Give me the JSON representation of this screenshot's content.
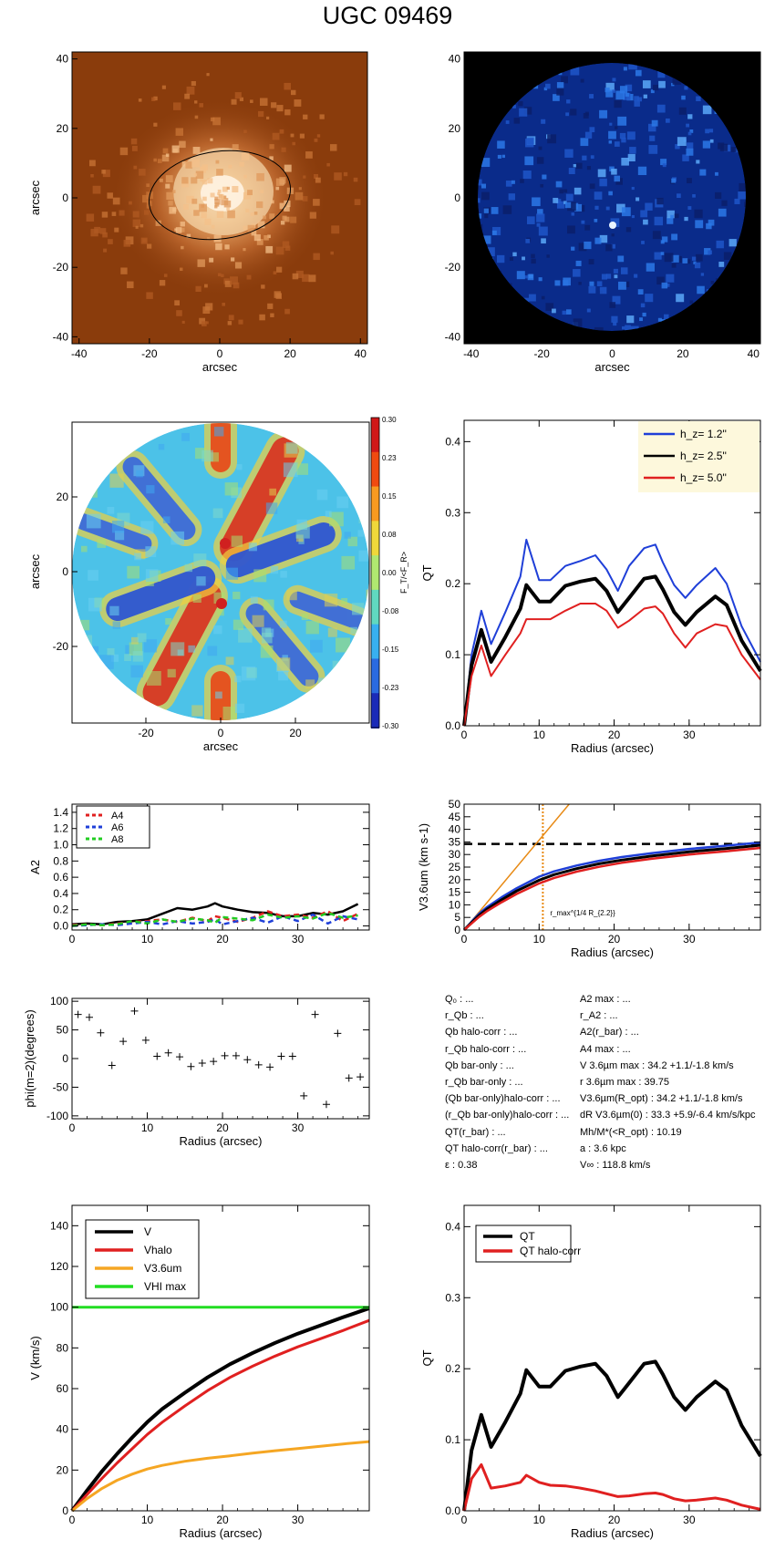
{
  "page": {
    "title": "UGC 09469"
  },
  "chart_data": [
    {
      "id": "image-3p6um",
      "type": "heatmap",
      "colormap": "orange",
      "xlabel": "arcsec",
      "ylabel": "arcsec",
      "xlim": [
        -42,
        42
      ],
      "ylim": [
        -42,
        42
      ],
      "xticks": [
        "-40",
        "-20",
        "0",
        "20",
        "40"
      ],
      "yticks": [
        "-40",
        "-20",
        "0",
        "20",
        "40"
      ],
      "ellipse": {
        "cx": 0,
        "cy": 0,
        "a": 20,
        "b": 12,
        "pa_deg": -10
      }
    },
    {
      "id": "image-residual",
      "type": "heatmap",
      "colormap": "blue",
      "xlabel": "arcsec",
      "ylabel": "",
      "xlim": [
        -42,
        42
      ],
      "ylim": [
        -42,
        42
      ],
      "xticks": [
        "-40",
        "-20",
        "0",
        "20",
        "40"
      ],
      "yticks": [
        "-40",
        "-20",
        "0",
        "20",
        "40"
      ]
    },
    {
      "id": "force-map",
      "type": "heatmap",
      "xlabel": "arcsec",
      "ylabel": "arcsec",
      "xticks": [
        "-20",
        "0",
        "20"
      ],
      "yticks": [
        "20",
        "0",
        "-20"
      ],
      "colorbar": {
        "label": "F_T/<F_R>",
        "ticks": [
          "0.30",
          "0.23",
          "0.15",
          "0.08",
          "0.00",
          "-0.08",
          "-0.15",
          "-0.23",
          "-0.30"
        ]
      }
    },
    {
      "id": "qt-profile",
      "type": "line",
      "xlabel": "Radius (arcsec)",
      "ylabel": "QT",
      "xlim": [
        0,
        39.5
      ],
      "ylim": [
        0,
        0.43
      ],
      "xticks": [
        "0",
        "10",
        "20",
        "30"
      ],
      "yticks": [
        "0.0",
        "0.1",
        "0.2",
        "0.3",
        "0.4"
      ],
      "legend": {
        "placement": "top-right",
        "items": [
          {
            "label": "h_z= 1.2''",
            "color": "#1f3fd8"
          },
          {
            "label": "h_z= 2.5''",
            "color": "#000000"
          },
          {
            "label": "h_z= 5.0''",
            "color": "#e02020"
          }
        ]
      },
      "x": [
        0,
        1,
        2.3,
        3.6,
        5.5,
        7.5,
        8.3,
        10,
        11.5,
        13.5,
        15.5,
        17.5,
        19,
        20.5,
        22,
        24,
        25.5,
        26.5,
        28,
        29.5,
        31,
        33.5,
        35,
        37,
        39.5
      ],
      "series": [
        {
          "name": "h_z= 1.2''",
          "color": "#1f3fd8",
          "values": [
            0,
            0.1,
            0.162,
            0.115,
            0.16,
            0.21,
            0.262,
            0.205,
            0.205,
            0.225,
            0.232,
            0.24,
            0.22,
            0.19,
            0.225,
            0.25,
            0.255,
            0.23,
            0.198,
            0.18,
            0.198,
            0.222,
            0.2,
            0.14,
            0.09
          ]
        },
        {
          "name": "h_z= 2.5''",
          "color": "#000000",
          "values": [
            0,
            0.085,
            0.135,
            0.09,
            0.125,
            0.165,
            0.198,
            0.175,
            0.175,
            0.197,
            0.203,
            0.207,
            0.19,
            0.16,
            0.18,
            0.207,
            0.21,
            0.192,
            0.16,
            0.142,
            0.16,
            0.182,
            0.17,
            0.12,
            0.077
          ]
        },
        {
          "name": "h_z= 5.0''",
          "color": "#e02020",
          "values": [
            0,
            0.07,
            0.113,
            0.07,
            0.1,
            0.13,
            0.15,
            0.15,
            0.15,
            0.162,
            0.172,
            0.172,
            0.162,
            0.138,
            0.148,
            0.165,
            0.168,
            0.158,
            0.13,
            0.11,
            0.13,
            0.143,
            0.14,
            0.1,
            0.065
          ]
        }
      ]
    },
    {
      "id": "fourier-amplitudes",
      "type": "line",
      "xlabel": "",
      "ylabel": "A2",
      "xlim": [
        0,
        39.5
      ],
      "ylim": [
        -0.05,
        1.5
      ],
      "xticks": [
        "0",
        "10",
        "20",
        "30"
      ],
      "yticks": [
        "0.0",
        "0.2",
        "0.4",
        "0.6",
        "0.8",
        "1.0",
        "1.2",
        "1.4"
      ],
      "legend": {
        "placement": "top-left",
        "items": [
          {
            "label": "A4",
            "color": "#e02020"
          },
          {
            "label": "A6",
            "color": "#1f3fd8"
          },
          {
            "label": "A8",
            "color": "#22cc22"
          }
        ]
      },
      "x": [
        0,
        2,
        4,
        6,
        8,
        10,
        12,
        14,
        16,
        18,
        19,
        20,
        22,
        24,
        26,
        28,
        30,
        32,
        34,
        36,
        38
      ],
      "series": [
        {
          "name": "A2",
          "color": "#000000",
          "values": [
            0.02,
            0.03,
            0.02,
            0.05,
            0.06,
            0.08,
            0.15,
            0.22,
            0.2,
            0.24,
            0.28,
            0.24,
            0.2,
            0.17,
            0.16,
            0.12,
            0.12,
            0.16,
            0.14,
            0.18,
            0.27
          ]
        },
        {
          "name": "A4",
          "color": "#e02020",
          "values": [
            0.01,
            0.02,
            0.01,
            0.03,
            0.05,
            0.06,
            0.08,
            0.05,
            0.1,
            0.06,
            0.12,
            0.1,
            0.05,
            0.1,
            0.18,
            0.12,
            0.14,
            0.1,
            0.18,
            0.06,
            0.15
          ]
        },
        {
          "name": "A6",
          "color": "#1f3fd8",
          "values": [
            0.0,
            0.01,
            0.02,
            0.01,
            0.03,
            0.05,
            0.02,
            0.06,
            0.03,
            0.05,
            0.08,
            0.02,
            0.06,
            0.1,
            0.04,
            0.12,
            0.06,
            0.14,
            0.03,
            0.12,
            0.08
          ]
        },
        {
          "name": "A8",
          "color": "#22cc22",
          "values": [
            0.0,
            0.02,
            0.01,
            0.02,
            0.06,
            0.03,
            0.08,
            0.05,
            0.09,
            0.07,
            0.04,
            0.11,
            0.09,
            0.07,
            0.14,
            0.1,
            0.12,
            0.09,
            0.16,
            0.1,
            0.13
          ]
        }
      ]
    },
    {
      "id": "rotation-3p6um",
      "type": "line",
      "xlabel": "Radius (arcsec)",
      "ylabel": "V3.6um (km s-1)",
      "xlim": [
        0,
        39.5
      ],
      "ylim": [
        0,
        50
      ],
      "xticks": [
        "0",
        "10",
        "20",
        "30"
      ],
      "yticks": [
        "0",
        "5",
        "10",
        "15",
        "20",
        "25",
        "30",
        "35",
        "40",
        "45",
        "50"
      ],
      "vline_x": 10.5,
      "vline_label": "r_max^{1/4 R_{2.2}}",
      "hline_y": 34.2,
      "slope_line": {
        "x": [
          0,
          14
        ],
        "y": [
          0,
          50
        ],
        "color": "#e88a14"
      },
      "x": [
        0,
        1,
        2,
        3,
        5,
        7,
        10,
        12,
        15,
        18,
        21,
        25,
        30,
        35,
        39.5
      ],
      "series": [
        {
          "name": "upper",
          "color": "#1f3fd8",
          "values": [
            0,
            3.3,
            6.5,
            9,
            13,
            16.6,
            21.2,
            23.3,
            25.6,
            27.5,
            29,
            30.5,
            32.2,
            33.5,
            34.8
          ]
        },
        {
          "name": "V",
          "color": "#000000",
          "values": [
            0,
            2.9,
            5.8,
            8.2,
            12,
            15.5,
            19.8,
            22,
            24.4,
            26.3,
            27.8,
            29.4,
            31.1,
            32.4,
            33.7
          ]
        },
        {
          "name": "lower",
          "color": "#e02020",
          "values": [
            0,
            2.6,
            5.2,
            7.4,
            11,
            14.3,
            18.5,
            20.7,
            23.2,
            25.1,
            26.7,
            28.3,
            30,
            31.3,
            32.6
          ]
        }
      ]
    },
    {
      "id": "phase-profile",
      "type": "scatter",
      "xlabel": "Radius (arcsec)",
      "ylabel": "phi(m=2)(degrees)",
      "xlim": [
        0,
        39.5
      ],
      "ylim": [
        -105,
        105
      ],
      "xticks": [
        "0",
        "10",
        "20",
        "30"
      ],
      "yticks": [
        "100",
        "50",
        "0",
        "-50",
        "-100"
      ],
      "x": [
        0.8,
        2.3,
        3.8,
        5.3,
        6.8,
        8.3,
        9.8,
        11.3,
        12.8,
        14.3,
        15.8,
        17.3,
        18.8,
        20.3,
        21.8,
        23.3,
        24.8,
        26.3,
        27.8,
        29.3,
        30.8,
        32.3,
        33.8,
        35.3,
        36.8,
        38.3
      ],
      "y": [
        77,
        72,
        45,
        -12,
        30,
        83,
        32,
        4,
        10,
        3,
        -14,
        -8,
        -5,
        5,
        5,
        -2,
        -11,
        -15,
        4,
        4,
        -65,
        77,
        -80,
        44,
        -34,
        -32
      ]
    },
    {
      "id": "rotation-components",
      "type": "line",
      "xlabel": "Radius (arcsec)",
      "ylabel": "V (km/s)",
      "xlim": [
        0,
        39.5
      ],
      "ylim": [
        0,
        150
      ],
      "xticks": [
        "0",
        "10",
        "20",
        "30"
      ],
      "yticks": [
        "0",
        "20",
        "40",
        "60",
        "80",
        "100",
        "120",
        "140"
      ],
      "legend": {
        "placement": "top-left",
        "items": [
          {
            "label": "V",
            "color": "#000000"
          },
          {
            "label": "Vhalo",
            "color": "#e02020"
          },
          {
            "label": "V3.6um",
            "color": "#f5a623"
          },
          {
            "label": "VHI max",
            "color": "#22dd22"
          }
        ]
      },
      "x": [
        0,
        2,
        4,
        6,
        8,
        10,
        12,
        15,
        18,
        21,
        24,
        27,
        30,
        33,
        36,
        39.5
      ],
      "series": [
        {
          "name": "V",
          "color": "#000000",
          "values": [
            0,
            10,
            19.5,
            28,
            36,
            43.5,
            50,
            58,
            65.5,
            72,
            77.5,
            82.5,
            87,
            91,
            95,
            99.5
          ]
        },
        {
          "name": "Vhalo",
          "color": "#e02020",
          "values": [
            0,
            8,
            16,
            23.5,
            30.5,
            37.5,
            43.5,
            51.5,
            59,
            65.5,
            71,
            76,
            80.5,
            84.5,
            88.5,
            93.5
          ]
        },
        {
          "name": "V3.6um",
          "color": "#f5a623",
          "values": [
            0,
            6,
            11,
            15,
            18,
            20.5,
            22.3,
            24.3,
            25.8,
            27,
            28.3,
            29.5,
            30.6,
            31.7,
            32.8,
            34
          ]
        },
        {
          "name": "VHI max",
          "color": "#22dd22",
          "values": [
            100,
            100,
            100,
            100,
            100,
            100,
            100,
            100,
            100,
            100,
            100,
            100,
            100,
            100,
            100,
            100
          ]
        }
      ]
    },
    {
      "id": "qt-halo-corrected",
      "type": "line",
      "xlabel": "Radius (arcsec)",
      "ylabel": "QT",
      "xlim": [
        0,
        39.5
      ],
      "ylim": [
        0,
        0.43
      ],
      "xticks": [
        "0",
        "10",
        "20",
        "30"
      ],
      "yticks": [
        "0.0",
        "0.1",
        "0.2",
        "0.3",
        "0.4"
      ],
      "legend": {
        "placement": "top-left",
        "items": [
          {
            "label": "QT",
            "color": "#000000"
          },
          {
            "label": "QT halo-corr",
            "color": "#e02020"
          }
        ]
      },
      "x": [
        0,
        1,
        2.3,
        3.6,
        5.5,
        7.5,
        8.3,
        10,
        11.5,
        13.5,
        15.5,
        17.5,
        19,
        20.5,
        22,
        24,
        25.5,
        26.5,
        28,
        29.5,
        31,
        33.5,
        35,
        37,
        39.5
      ],
      "series": [
        {
          "name": "QT",
          "color": "#000000",
          "values": [
            0,
            0.085,
            0.135,
            0.09,
            0.125,
            0.165,
            0.198,
            0.175,
            0.175,
            0.197,
            0.203,
            0.207,
            0.19,
            0.16,
            0.18,
            0.207,
            0.21,
            0.192,
            0.16,
            0.142,
            0.16,
            0.182,
            0.17,
            0.12,
            0.077
          ]
        },
        {
          "name": "QT halo-corr",
          "color": "#e02020",
          "values": [
            0,
            0.045,
            0.065,
            0.032,
            0.035,
            0.04,
            0.05,
            0.04,
            0.036,
            0.035,
            0.032,
            0.028,
            0.024,
            0.02,
            0.021,
            0.024,
            0.025,
            0.023,
            0.017,
            0.014,
            0.015,
            0.018,
            0.015,
            0.008,
            0.002
          ]
        }
      ]
    }
  ],
  "info": {
    "left": [
      "Q₀ : ...",
      "r_Qb : ...",
      "Qb halo-corr : ...",
      "r_Qb halo-corr : ...",
      "Qb bar-only : ...",
      "r_Qb bar-only : ...",
      "(Qb bar-only)halo-corr : ...",
      "(r_Qb bar-only)halo-corr : ...",
      "QT(r_bar) : ...",
      "QT halo-corr(r_bar) : ...",
      "ε :  0.38"
    ],
    "right": [
      "A2 max : ...",
      "r_A2 : ...",
      "A2(r_bar) : ...",
      "A4 max : ...",
      "V 3.6µm max :  34.2 +1.1/-1.8 km/s",
      "r 3.6µm max :  39.75",
      "V3.6µm(R_opt) :  34.2 +1.1/-1.8 km/s",
      "dR V3.6µm(0) :  33.3 +5.9/-6.4 km/s/kpc",
      "Mh/M*(<R_opt) :  10.19",
      "a :   3.6 kpc",
      "V∞ :  118.8 km/s"
    ]
  }
}
